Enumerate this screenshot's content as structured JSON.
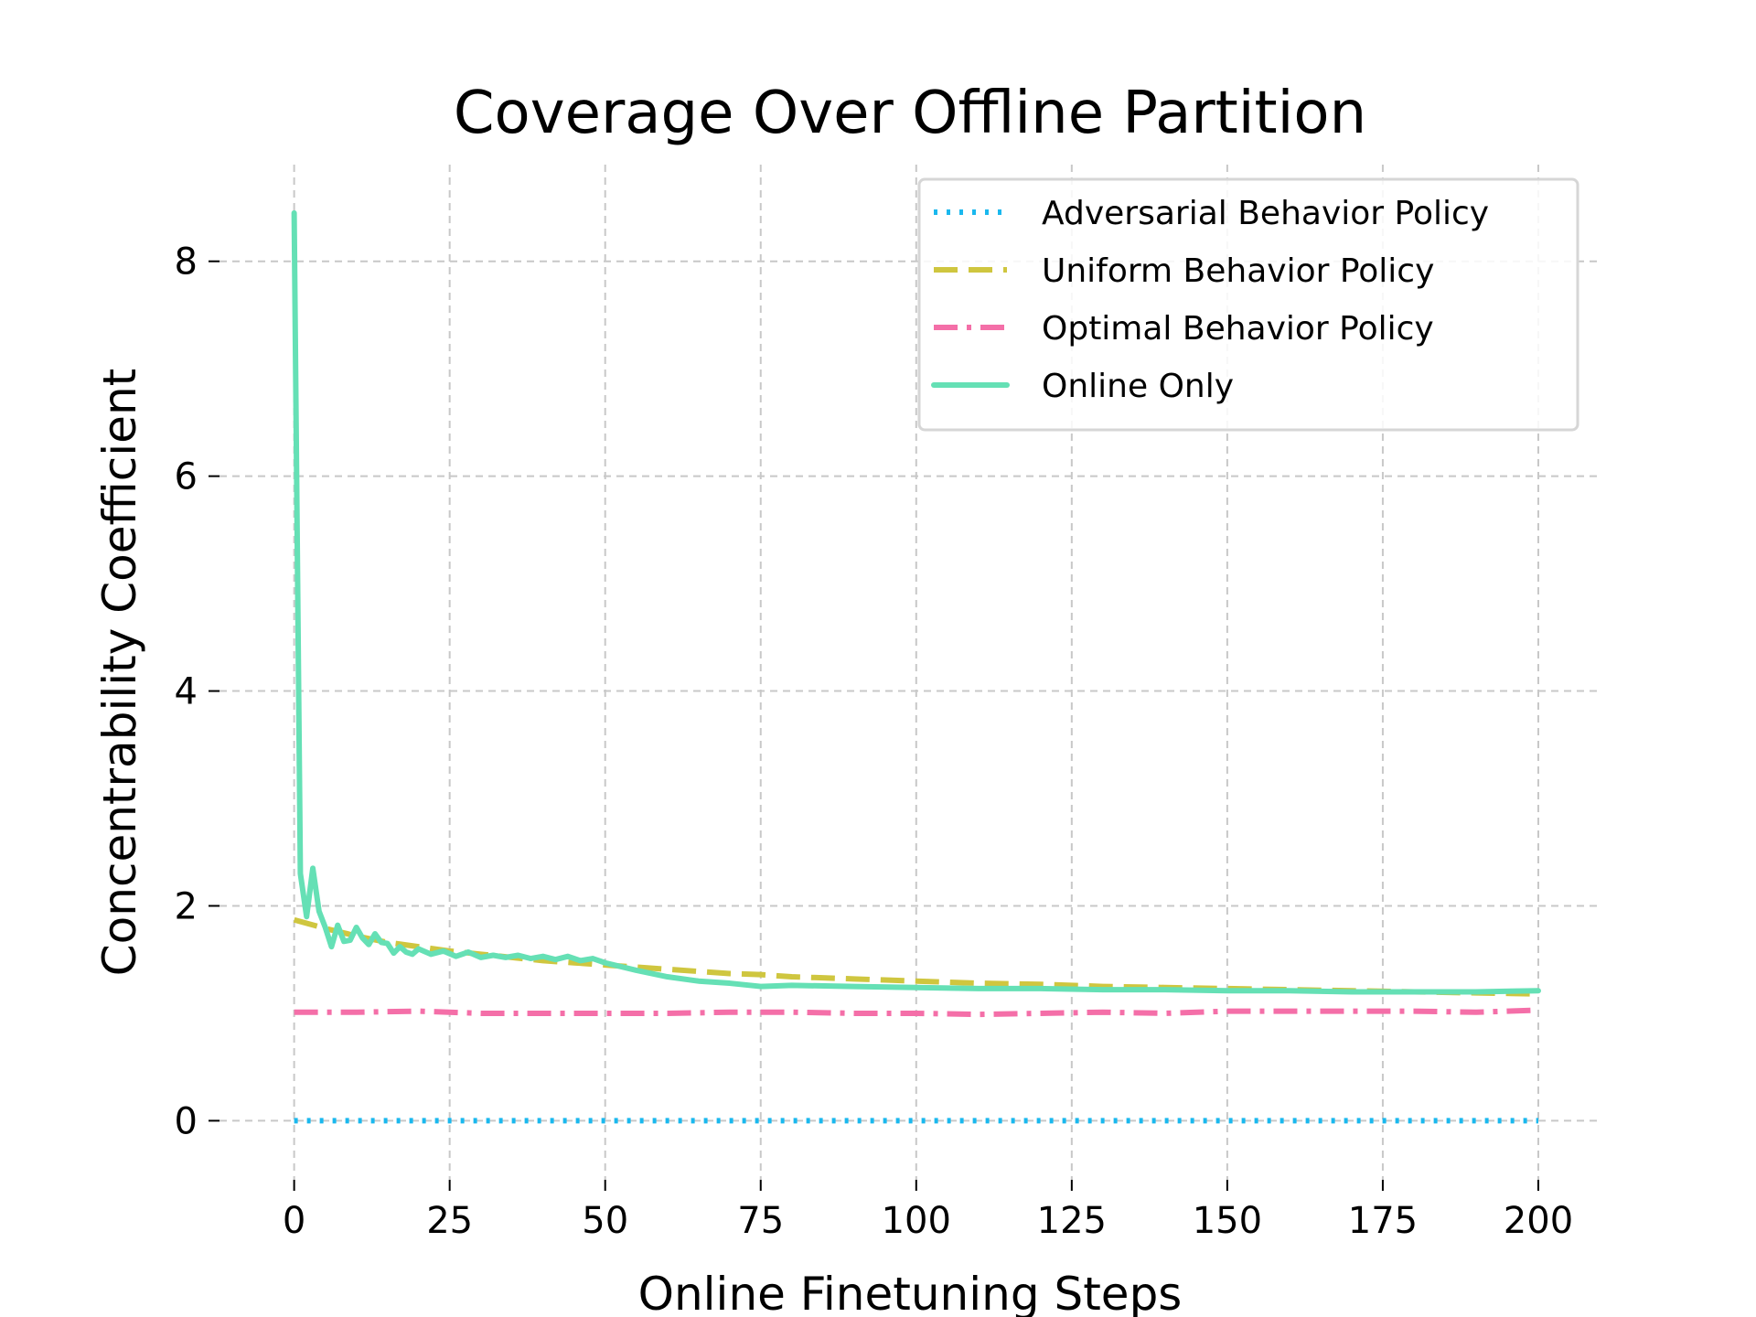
{
  "chart_data": {
    "type": "line",
    "title": "Coverage Over Offline Partition",
    "xlabel": "Online Finetuning Steps",
    "ylabel": "Concentrability Coefficient",
    "xlim": [
      -12,
      210
    ],
    "ylim": [
      -0.55,
      8.9
    ],
    "xticks": [
      0,
      25,
      50,
      75,
      100,
      125,
      150,
      175,
      200
    ],
    "yticks": [
      0,
      2,
      4,
      6,
      8
    ],
    "grid": true,
    "legend_position": "top-right",
    "series": [
      {
        "name": "Adversarial Behavior Policy",
        "color": "#1ab8ee",
        "style": "dotted",
        "x": [
          0,
          200
        ],
        "y": [
          0,
          0
        ]
      },
      {
        "name": "Uniform Behavior Policy",
        "color": "#cfc63f",
        "style": "dashed",
        "x": [
          0,
          5,
          10,
          15,
          20,
          25,
          30,
          35,
          40,
          45,
          50,
          55,
          60,
          65,
          70,
          75,
          80,
          85,
          90,
          95,
          100,
          110,
          120,
          130,
          140,
          150,
          160,
          170,
          180,
          190,
          200
        ],
        "y": [
          1.87,
          1.79,
          1.72,
          1.66,
          1.62,
          1.58,
          1.55,
          1.52,
          1.49,
          1.47,
          1.45,
          1.43,
          1.41,
          1.39,
          1.37,
          1.36,
          1.34,
          1.33,
          1.32,
          1.31,
          1.3,
          1.28,
          1.27,
          1.25,
          1.24,
          1.23,
          1.22,
          1.21,
          1.2,
          1.19,
          1.18
        ]
      },
      {
        "name": "Optimal Behavior Policy",
        "color": "#f46fa8",
        "style": "dashdot",
        "x": [
          0,
          10,
          20,
          30,
          40,
          50,
          60,
          70,
          80,
          90,
          100,
          110,
          120,
          130,
          140,
          150,
          160,
          170,
          180,
          190,
          200
        ],
        "y": [
          1.01,
          1.01,
          1.02,
          1.0,
          1.0,
          1.0,
          1.0,
          1.01,
          1.01,
          1.0,
          1.0,
          0.99,
          1.0,
          1.01,
          1.0,
          1.02,
          1.02,
          1.02,
          1.02,
          1.01,
          1.03
        ]
      },
      {
        "name": "Online Only",
        "color": "#65e0b5",
        "style": "solid",
        "x": [
          0,
          1,
          2,
          3,
          4,
          5,
          6,
          7,
          8,
          9,
          10,
          11,
          12,
          13,
          14,
          15,
          16,
          17,
          18,
          19,
          20,
          22,
          24,
          26,
          28,
          30,
          32,
          34,
          36,
          38,
          40,
          42,
          44,
          46,
          48,
          50,
          55,
          60,
          65,
          70,
          75,
          80,
          90,
          100,
          110,
          120,
          130,
          140,
          150,
          160,
          170,
          180,
          190,
          200
        ],
        "y": [
          8.45,
          2.3,
          1.9,
          2.35,
          1.95,
          1.8,
          1.62,
          1.82,
          1.67,
          1.68,
          1.8,
          1.7,
          1.64,
          1.74,
          1.66,
          1.65,
          1.56,
          1.62,
          1.57,
          1.55,
          1.6,
          1.55,
          1.58,
          1.53,
          1.57,
          1.52,
          1.54,
          1.52,
          1.54,
          1.51,
          1.53,
          1.5,
          1.53,
          1.49,
          1.51,
          1.47,
          1.4,
          1.34,
          1.3,
          1.28,
          1.25,
          1.26,
          1.25,
          1.24,
          1.23,
          1.23,
          1.22,
          1.22,
          1.21,
          1.21,
          1.2,
          1.2,
          1.2,
          1.21
        ]
      }
    ]
  }
}
